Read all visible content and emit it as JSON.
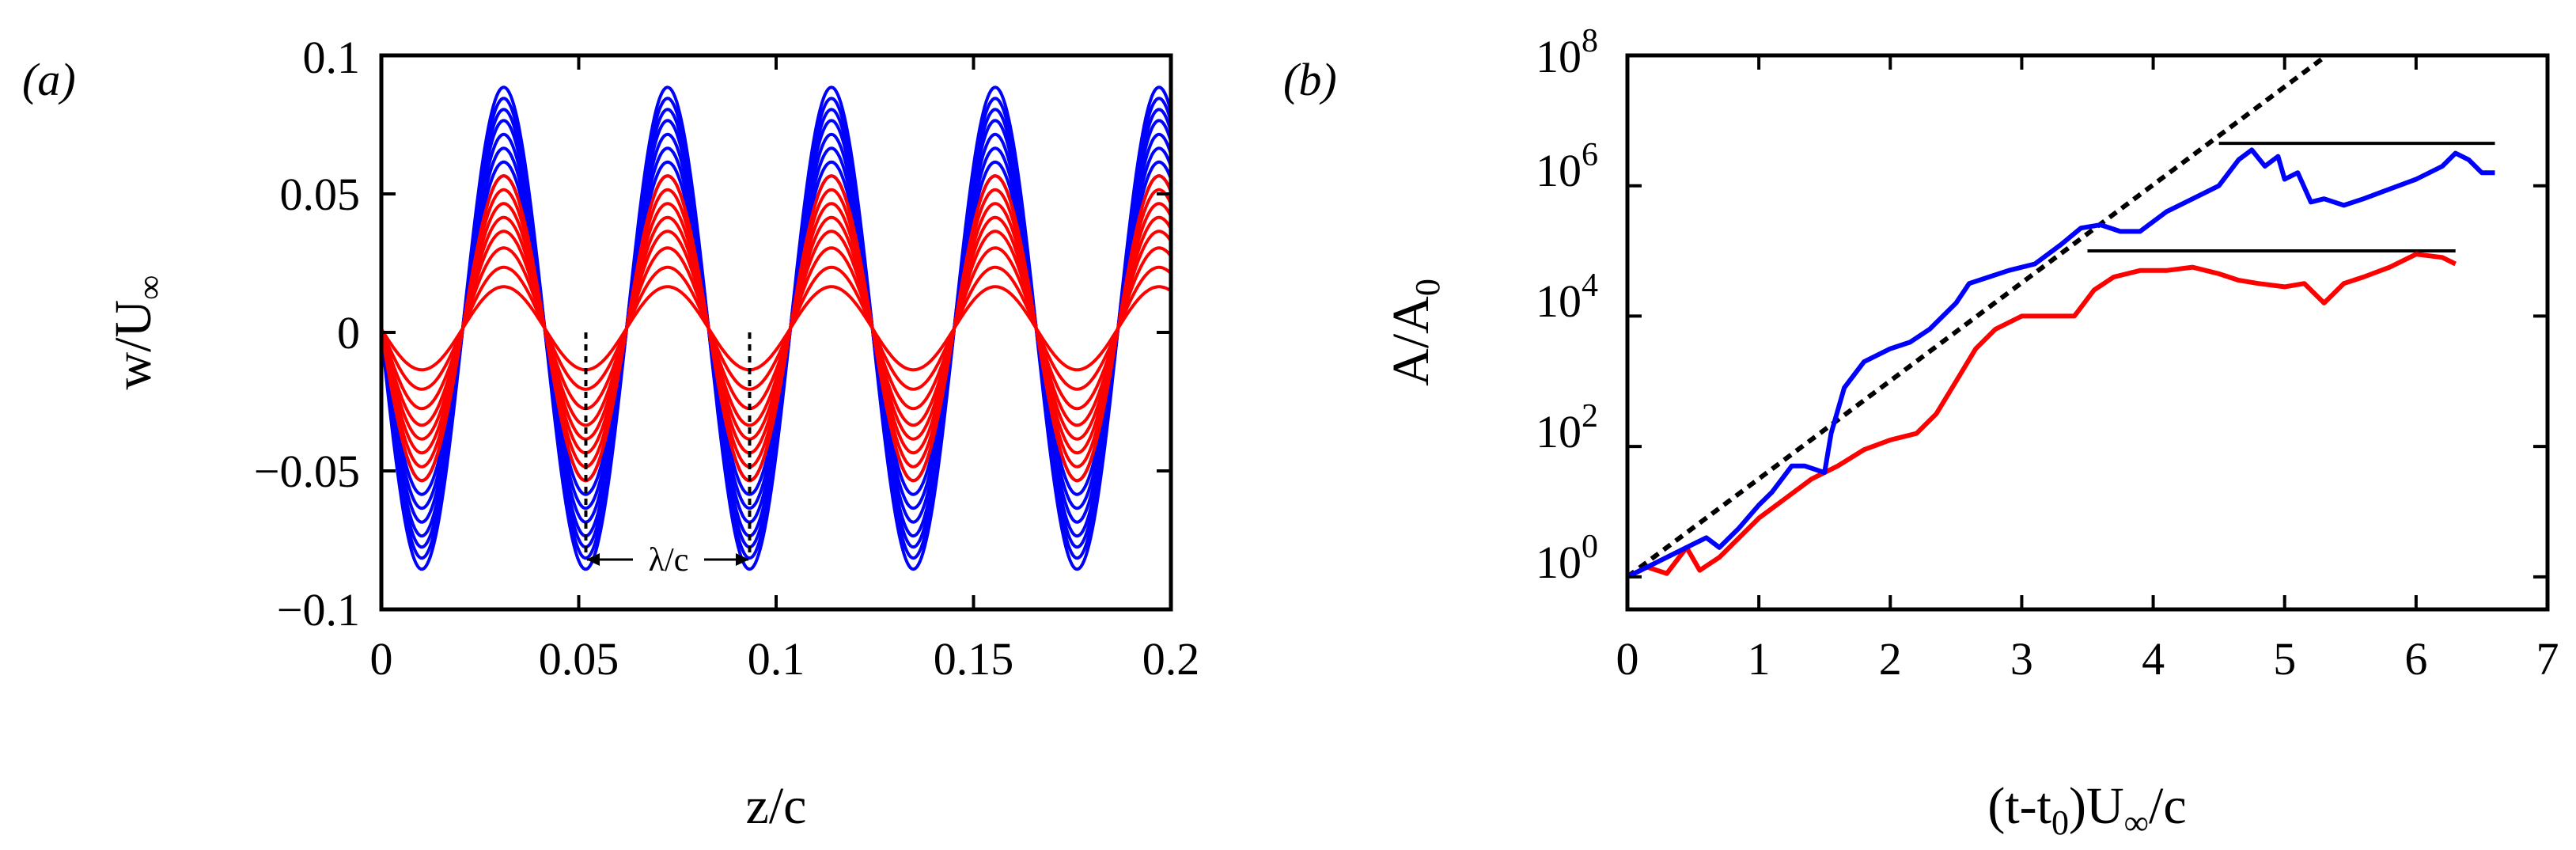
{
  "figure": {
    "colors": {
      "blue": "#0000ff",
      "red": "#ff0000",
      "black": "#000000"
    }
  },
  "chart_data": [
    {
      "id": "a",
      "type": "line",
      "panel_label": "(a)",
      "xlabel": "z/c",
      "ylabel_main": "w/U",
      "ylabel_sub": "∞",
      "xlim": [
        0,
        0.2
      ],
      "ylim": [
        -0.1,
        0.1
      ],
      "xticks": [
        0,
        0.05,
        0.1,
        0.15,
        0.2
      ],
      "xtick_labels": [
        "0",
        "0.05",
        "0.1",
        "0.15",
        "0.2"
      ],
      "yticks": [
        -0.1,
        -0.05,
        0,
        0.05,
        0.1
      ],
      "ytick_labels": [
        "−0.1",
        "−0.05",
        "0",
        "0.05",
        "0.1"
      ],
      "wavelength": 0.0415,
      "phase_peak_z": 0.031,
      "offset": 0.0015,
      "series_blue_amplitudes": [
        0.087,
        0.083,
        0.079,
        0.075,
        0.07,
        0.065,
        0.06,
        0.055
      ],
      "series_red_amplitudes": [
        0.055,
        0.05,
        0.045,
        0.04,
        0.035,
        0.029,
        0.022,
        0.015
      ],
      "annotation": {
        "label": "λ/c",
        "z_start": 0.0518,
        "z_end": 0.0933,
        "y": -0.082
      }
    },
    {
      "id": "b",
      "type": "line",
      "panel_label": "(b)",
      "xlabel": "(t-t",
      "xlabel_sub": "0",
      "xlabel_tail": ")U",
      "xlabel_sub2": "∞",
      "xlabel_end": "/c",
      "ylabel_main": "A/A",
      "ylabel_sub": "0",
      "xlim": [
        0,
        7
      ],
      "ylim_log10": [
        -0.5,
        8
      ],
      "xticks": [
        0,
        1,
        2,
        3,
        4,
        5,
        6,
        7
      ],
      "xtick_labels": [
        "0",
        "1",
        "2",
        "3",
        "4",
        "5",
        "6",
        "7"
      ],
      "ytick_exponents": [
        0,
        2,
        4,
        6,
        8
      ],
      "ytick_base": "10",
      "ytick_exp_labels": [
        "0",
        "2",
        "4",
        "6",
        "8"
      ],
      "series": [
        {
          "name": "blue",
          "x": [
            0,
            0.2,
            0.35,
            0.5,
            0.6,
            0.7,
            0.85,
            1.0,
            1.1,
            1.25,
            1.35,
            1.5,
            1.55,
            1.65,
            1.8,
            2.0,
            2.15,
            2.3,
            2.5,
            2.6,
            2.75,
            2.9,
            3.1,
            3.3,
            3.45,
            3.6,
            3.75,
            3.9,
            4.1,
            4.3,
            4.5,
            4.65,
            4.75,
            4.85,
            4.95,
            5.0,
            5.1,
            5.2,
            5.3,
            5.45,
            5.6,
            5.8,
            6.0,
            6.2,
            6.3,
            6.4,
            6.5,
            6.6
          ],
          "log10_y": [
            0,
            0.2,
            0.35,
            0.5,
            0.6,
            0.45,
            0.75,
            1.1,
            1.3,
            1.7,
            1.7,
            1.6,
            2.2,
            2.9,
            3.3,
            3.5,
            3.6,
            3.8,
            4.2,
            4.5,
            4.6,
            4.7,
            4.8,
            5.1,
            5.35,
            5.4,
            5.3,
            5.3,
            5.6,
            5.8,
            6.0,
            6.4,
            6.55,
            6.3,
            6.45,
            6.1,
            6.2,
            5.75,
            5.8,
            5.7,
            5.8,
            5.95,
            6.1,
            6.3,
            6.5,
            6.4,
            6.2,
            6.2
          ]
        },
        {
          "name": "red",
          "x": [
            0,
            0.15,
            0.3,
            0.45,
            0.55,
            0.7,
            0.85,
            1.0,
            1.2,
            1.4,
            1.6,
            1.8,
            2.0,
            2.2,
            2.35,
            2.5,
            2.65,
            2.8,
            3.0,
            3.2,
            3.4,
            3.55,
            3.7,
            3.9,
            4.1,
            4.3,
            4.5,
            4.65,
            4.8,
            5.0,
            5.15,
            5.3,
            5.45,
            5.6,
            5.8,
            6.0,
            6.2,
            6.3
          ],
          "log10_y": [
            0,
            0.15,
            0.05,
            0.45,
            0.1,
            0.3,
            0.6,
            0.9,
            1.2,
            1.5,
            1.7,
            1.95,
            2.1,
            2.2,
            2.5,
            3.0,
            3.5,
            3.8,
            4.0,
            4.0,
            4.0,
            4.4,
            4.6,
            4.7,
            4.7,
            4.75,
            4.65,
            4.55,
            4.5,
            4.45,
            4.5,
            4.2,
            4.5,
            4.6,
            4.75,
            4.95,
            4.9,
            4.8
          ]
        }
      ],
      "fit_line": {
        "x": [
          0,
          5.32
        ],
        "log10_y": [
          0,
          8
        ]
      },
      "saturation_lines": [
        {
          "x": [
            4.5,
            6.6
          ],
          "log10_y": 6.65
        },
        {
          "x": [
            3.5,
            6.3
          ],
          "log10_y": 5.0
        }
      ]
    }
  ]
}
